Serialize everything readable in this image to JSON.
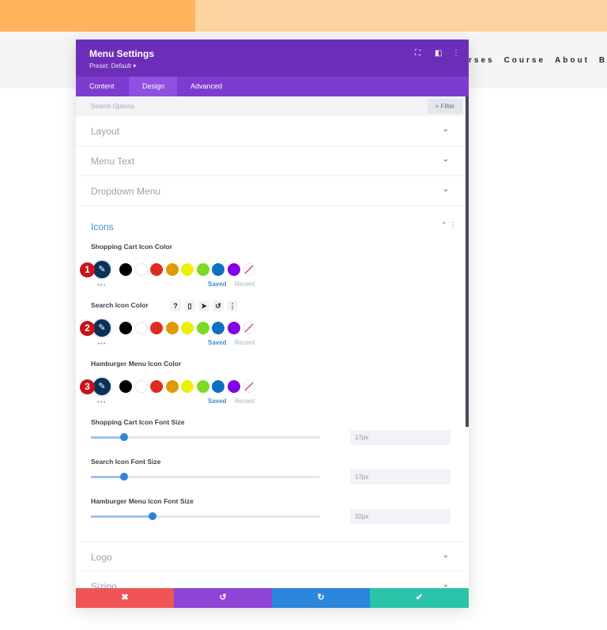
{
  "page": {
    "nav_items": [
      "rses",
      "Course",
      "About",
      "Bl"
    ]
  },
  "modal": {
    "title": "Menu Settings",
    "preset": "Preset: Default ▾",
    "header_icons": [
      "focus-icon",
      "split-view-icon",
      "more-icon"
    ],
    "tabs": [
      {
        "label": "Content"
      },
      {
        "label": "Design",
        "active": true
      },
      {
        "label": "Advanced"
      }
    ],
    "search_placeholder": "Search Options",
    "filter_label": "+ Filter",
    "sections": [
      {
        "label": "Layout"
      },
      {
        "label": "Menu Text"
      },
      {
        "label": "Dropdown Menu"
      },
      {
        "label": "Icons",
        "expanded": true
      },
      {
        "label": "Logo"
      },
      {
        "label": "Sizing"
      }
    ],
    "color_fields": [
      {
        "label": "Shopping Cart Icon Color",
        "badge": "1"
      },
      {
        "label": "Search Icon Color",
        "badge": "2"
      },
      {
        "label": "Hamburger Menu Icon Color",
        "badge": "3"
      }
    ],
    "swatches": [
      "#000000",
      "#ffffff",
      "#e02b20",
      "#e09900",
      "#edf000",
      "#7cda24",
      "#0c71c3",
      "#8300e9"
    ],
    "saved_label": "Saved",
    "recent_label": "Recent",
    "more_dots": "•••",
    "field_tools": [
      "?",
      "▯",
      "➤",
      "↺",
      "⋮"
    ],
    "sliders": [
      {
        "label": "Shopping Cart Icon Font Size",
        "value": "17px",
        "percent": 14.5
      },
      {
        "label": "Search Icon Font Size",
        "value": "17px",
        "percent": 14.5
      },
      {
        "label": "Hamburger Menu Icon Font Size",
        "value": "32px",
        "percent": 27
      }
    ],
    "footer": {
      "cancel": "✖",
      "undo": "↺",
      "redo": "↻",
      "save": "✔"
    },
    "colors": {
      "header": "#6c2eb9",
      "tabs": "#7e3bd0",
      "cancel": "#ef5555",
      "undo": "#8e44d4",
      "redo": "#2b87da",
      "save": "#29c4a9"
    }
  }
}
